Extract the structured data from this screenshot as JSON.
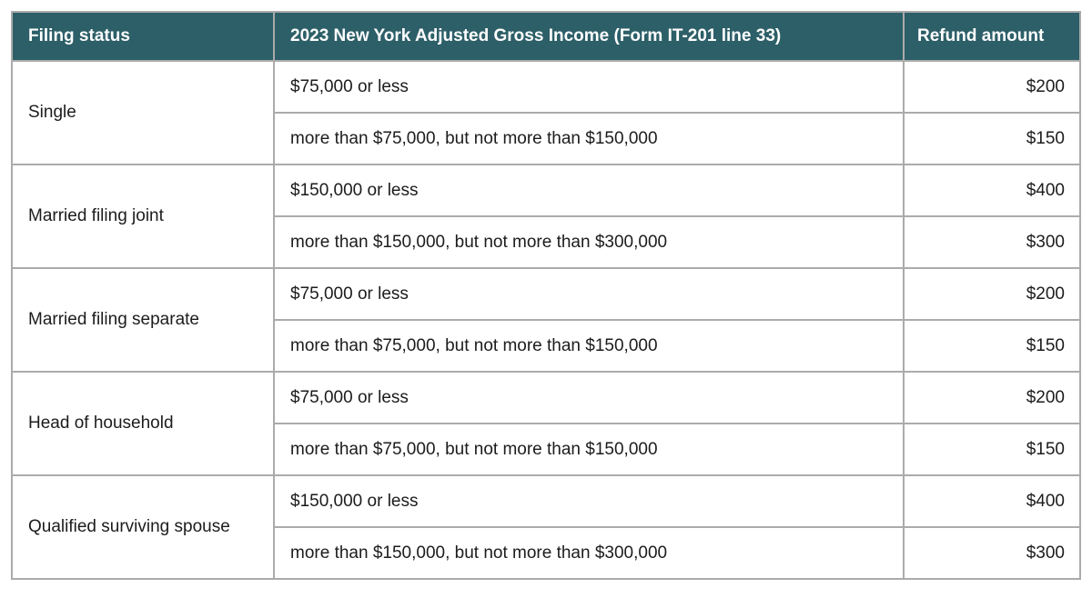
{
  "colors": {
    "header_bg": "#2d5f68",
    "header_text": "#ffffff",
    "body_text": "#1c1c1c",
    "border": "#ababab"
  },
  "table": {
    "columns": [
      {
        "label": "Filing status"
      },
      {
        "label": "2023 New York Adjusted Gross Income (Form IT-201 line 33)"
      },
      {
        "label": "Refund amount"
      }
    ],
    "groups": [
      {
        "status": "Single",
        "rows": [
          {
            "income": "$75,000 or less",
            "refund": "$200"
          },
          {
            "income": "more than $75,000, but not more than $150,000",
            "refund": "$150"
          }
        ]
      },
      {
        "status": "Married filing joint",
        "rows": [
          {
            "income": "$150,000 or less",
            "refund": "$400"
          },
          {
            "income": "more than $150,000, but not more than $300,000",
            "refund": "$300"
          }
        ]
      },
      {
        "status": "Married filing separate",
        "rows": [
          {
            "income": "$75,000 or less",
            "refund": "$200"
          },
          {
            "income": "more than $75,000, but not more than $150,000",
            "refund": "$150"
          }
        ]
      },
      {
        "status": "Head of household",
        "rows": [
          {
            "income": "$75,000 or less",
            "refund": "$200"
          },
          {
            "income": "more than $75,000, but not more than $150,000",
            "refund": "$150"
          }
        ]
      },
      {
        "status": "Qualified surviving spouse",
        "rows": [
          {
            "income": "$150,000 or less",
            "refund": "$400"
          },
          {
            "income": "more than $150,000, but not more than $300,000",
            "refund": "$300"
          }
        ]
      }
    ]
  }
}
